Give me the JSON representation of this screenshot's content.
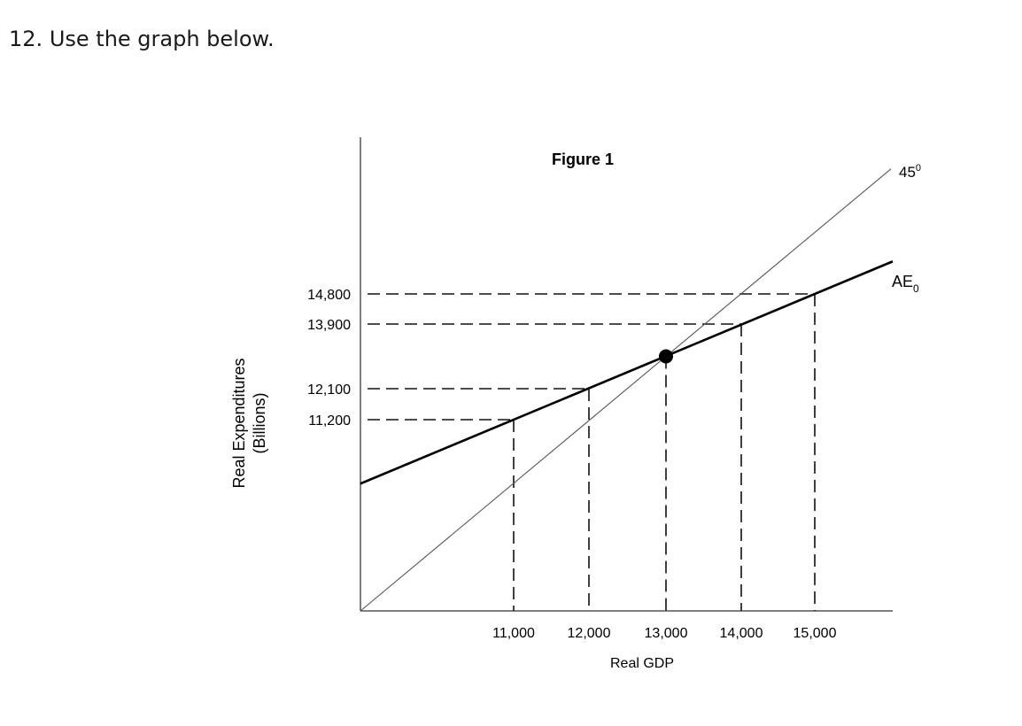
{
  "question": {
    "number": "12.",
    "text": "Use the graph below."
  },
  "chart_data": {
    "type": "line",
    "title": "Figure 1",
    "xlabel": "Real GDP",
    "ylabel_line1": "Real Expenditures",
    "ylabel_line2": "(Billions)",
    "x_ticks": [
      "11,000",
      "12,000",
      "13,000",
      "14,000",
      "15,000"
    ],
    "y_ticks": [
      "14,800",
      "13,900",
      "12,100",
      "11,200"
    ],
    "series": [
      {
        "name": "45",
        "superscript": "0",
        "x": [
          0,
          16000
        ],
        "y": [
          0,
          16000
        ]
      },
      {
        "name": "AE",
        "subscript": "0",
        "x": [
          9000,
          11000,
          12000,
          13000,
          14000,
          15000,
          16000
        ],
        "y": [
          9400,
          11200,
          12100,
          13000,
          13900,
          14800,
          15700
        ]
      }
    ],
    "points": [
      {
        "x": 11000,
        "y": 11200
      },
      {
        "x": 12000,
        "y": 12100
      },
      {
        "x": 14000,
        "y": 13900
      },
      {
        "x": 15000,
        "y": 14800
      }
    ],
    "equilibrium": {
      "x": 13000,
      "y": 13000
    },
    "grid": false
  }
}
